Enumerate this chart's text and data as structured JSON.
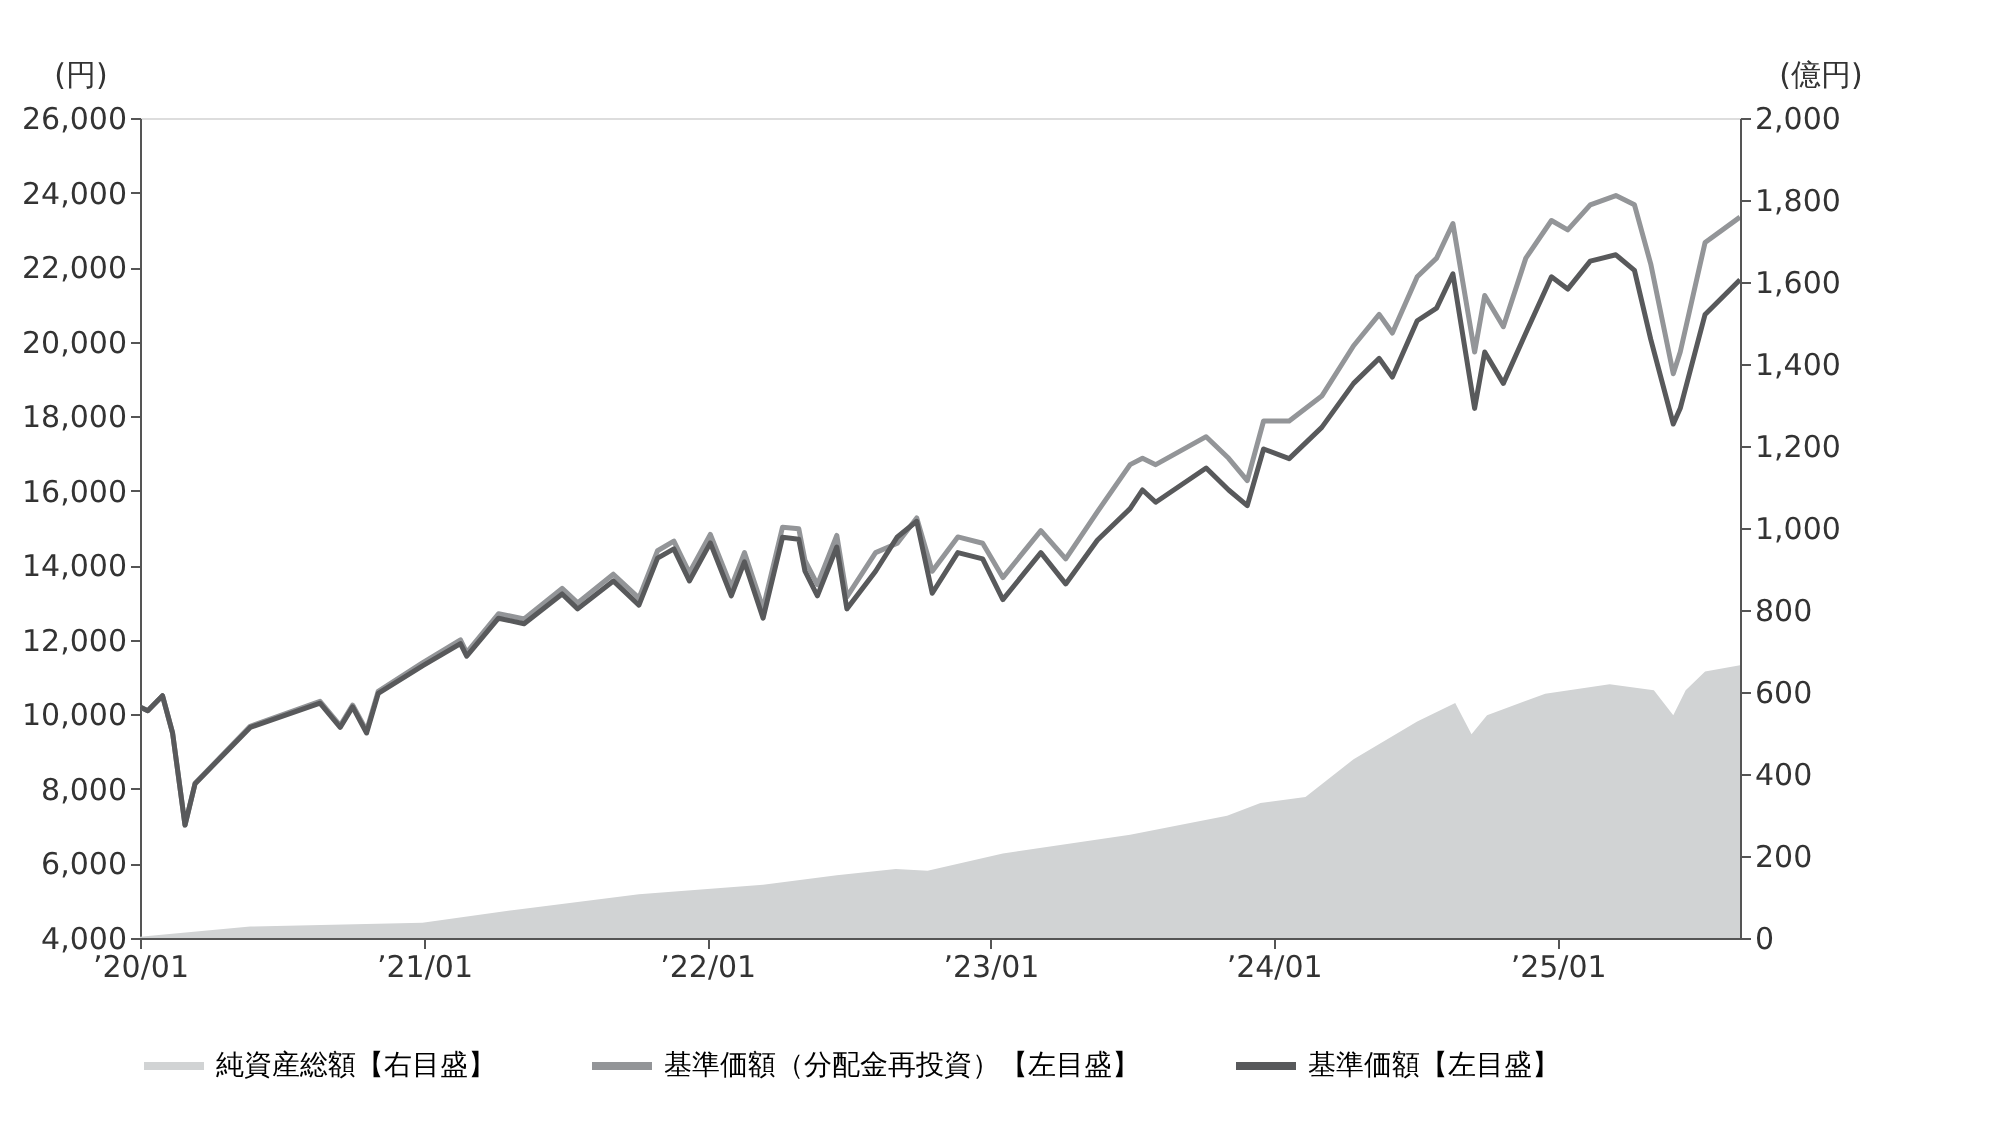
{
  "chart_data": {
    "type": "line",
    "ylabel": "(円)",
    "y2label": "(億円)",
    "legend": "bottom",
    "grid": false,
    "xlim": [
      "2020-01-01",
      "2025-08-24"
    ],
    "xticks": [
      {
        "value": "2020-01-01",
        "label": "’20/01"
      },
      {
        "value": "2021-01-01",
        "label": "’21/01"
      },
      {
        "value": "2022-01-01",
        "label": "’22/01"
      },
      {
        "value": "2023-01-01",
        "label": "’23/01"
      },
      {
        "value": "2024-01-01",
        "label": "’24/01"
      },
      {
        "value": "2025-01-01",
        "label": "’25/01"
      }
    ],
    "ylim": [
      4000,
      26000
    ],
    "yticks": [
      {
        "value": 4000,
        "label": "4,000"
      },
      {
        "value": 6000,
        "label": "6,000"
      },
      {
        "value": 8000,
        "label": "8,000"
      },
      {
        "value": 10000,
        "label": "10,000"
      },
      {
        "value": 12000,
        "label": "12,000"
      },
      {
        "value": 14000,
        "label": "14,000"
      },
      {
        "value": 16000,
        "label": "16,000"
      },
      {
        "value": 18000,
        "label": "18,000"
      },
      {
        "value": 20000,
        "label": "20,000"
      },
      {
        "value": 22000,
        "label": "22,000"
      },
      {
        "value": 24000,
        "label": "24,000"
      },
      {
        "value": 26000,
        "label": "26,000"
      }
    ],
    "y2lim": [
      0,
      2000
    ],
    "y2ticks": [
      0,
      200,
      400,
      600,
      800,
      {
        "value": 1000,
        "label": "1,000"
      },
      {
        "value": 1200,
        "label": "1,200"
      },
      {
        "value": 1400,
        "label": "1,400"
      },
      {
        "value": 1600,
        "label": "1,600"
      },
      {
        "value": 1800,
        "label": "1,800"
      },
      {
        "value": 2000,
        "label": "2,000"
      }
    ],
    "x": [
      "2020-01-01",
      "2020-01-11",
      "2020-01-30",
      "2020-02-12",
      "2020-02-28",
      "2020-03-12",
      "2020-05-22",
      "2020-08-20",
      "2020-09-15",
      "2020-10-01",
      "2020-10-19",
      "2020-11-03",
      "2020-12-30",
      "2021-02-17",
      "2021-02-25",
      "2021-04-07",
      "2021-05-10",
      "2021-06-28",
      "2021-07-18",
      "2021-09-02",
      "2021-10-05",
      "2021-10-29",
      "2021-11-19",
      "2021-12-09",
      "2022-01-05",
      "2022-02-01",
      "2022-02-18",
      "2022-03-14",
      "2022-04-08",
      "2022-04-29",
      "2022-05-07",
      "2022-05-23",
      "2022-06-17",
      "2022-06-30",
      "2022-08-06",
      "2022-09-03",
      "2022-09-28",
      "2022-10-18",
      "2022-11-20",
      "2022-12-22",
      "2023-01-17",
      "2023-03-07",
      "2023-04-08",
      "2023-05-19",
      "2023-06-30",
      "2023-07-16",
      "2023-08-02",
      "2023-10-06",
      "2023-11-04",
      "2023-11-28",
      "2023-12-19",
      "2024-01-21",
      "2024-03-03",
      "2024-04-13",
      "2024-05-16",
      "2024-06-02",
      "2024-07-04",
      "2024-07-29",
      "2024-08-19",
      "2024-09-16",
      "2024-09-29",
      "2024-10-23",
      "2024-11-21",
      "2024-12-24",
      "2025-01-14",
      "2025-02-12",
      "2025-03-17",
      "2025-04-10",
      "2025-05-01",
      "2025-05-30",
      "2025-06-08",
      "2025-07-10",
      "2025-08-24"
    ],
    "series": [
      {
        "name": "純資産総額【右目盛】",
        "type": "area",
        "axis": "y2",
        "color": "#d1d3d4",
        "x": [
          "2020-01-01",
          "2020-05-22",
          "2020-12-30",
          "2021-04-30",
          "2021-10-05",
          "2022-03-14",
          "2022-06-17",
          "2022-09-01",
          "2022-10-12",
          "2023-01-17",
          "2023-06-30",
          "2023-11-02",
          "2023-12-15",
          "2024-02-11",
          "2024-04-13",
          "2024-07-04",
          "2024-08-22",
          "2024-09-12",
          "2024-10-02",
          "2024-12-16",
          "2025-03-09",
          "2025-05-05",
          "2025-05-30",
          "2025-06-15",
          "2025-07-10",
          "2025-08-24"
        ],
        "values": [
          3,
          28,
          37,
          69,
          107,
          130,
          153,
          168,
          164,
          206,
          252,
          298,
          329,
          344,
          436,
          528,
          573,
          497,
          543,
          596,
          619,
          604,
          543,
          604,
          650,
          665
        ]
      },
      {
        "name": "基準価額（分配金再投資）【左目盛】",
        "color": "#939598",
        "values": [
          10200,
          10100,
          10500,
          9500,
          7030,
          8150,
          9680,
          10350,
          9700,
          10250,
          9560,
          10620,
          11380,
          12000,
          11660,
          12700,
          12560,
          13380,
          12990,
          13760,
          13120,
          14390,
          14650,
          13800,
          14830,
          13420,
          14340,
          12840,
          15020,
          14980,
          14130,
          13480,
          14800,
          13150,
          14340,
          14590,
          15270,
          13840,
          14760,
          14590,
          13670,
          14930,
          14170,
          15440,
          16700,
          16870,
          16700,
          17450,
          16870,
          16270,
          17870,
          17870,
          18540,
          19890,
          20730,
          20230,
          21740,
          22240,
          23170,
          19720,
          21240,
          20400,
          22240,
          23250,
          23000,
          23670,
          23920,
          23670,
          22080,
          19140,
          19720,
          22660,
          23340
        ]
      },
      {
        "name": "基準価額【左目盛】",
        "color": "#58595b",
        "values": [
          10200,
          10100,
          10500,
          9500,
          7030,
          8140,
          9650,
          10300,
          9650,
          10200,
          9500,
          10560,
          11300,
          11900,
          11560,
          12580,
          12430,
          13230,
          12830,
          13580,
          12930,
          14190,
          14440,
          13580,
          14600,
          13180,
          14090,
          12580,
          14750,
          14700,
          13840,
          13180,
          14490,
          12830,
          13840,
          14760,
          15180,
          13250,
          14340,
          14170,
          13080,
          14340,
          13500,
          14680,
          15520,
          16020,
          15690,
          16610,
          16020,
          15600,
          17120,
          16860,
          17700,
          18880,
          19550,
          19050,
          20560,
          20900,
          21820,
          18210,
          19720,
          18880,
          20230,
          21740,
          21410,
          22160,
          22330,
          21910,
          20060,
          17790,
          18210,
          20730,
          21660
        ]
      }
    ]
  }
}
